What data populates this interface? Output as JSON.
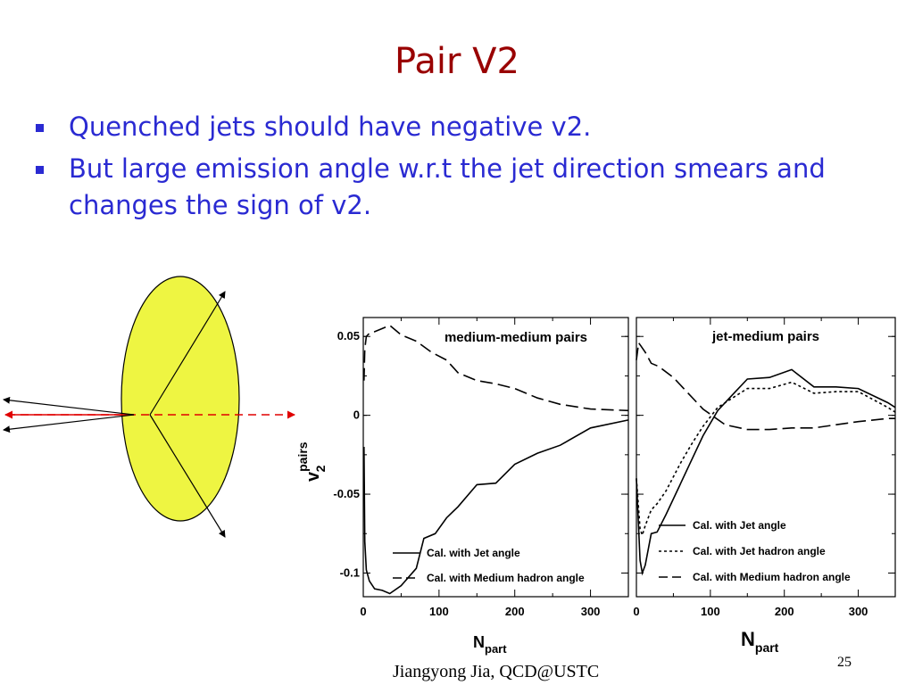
{
  "slide": {
    "title": "Pair V2",
    "bullets": [
      "Quenched jets should have negative v2.",
      "But large emission angle w.r.t the jet direction smears and changes the sign of v2."
    ],
    "footer": "Jiangyong Jia,  QCD@USTC",
    "slide_number": "25"
  },
  "diagram": {
    "ellipse_color": "#eef542",
    "dashed_line_color": "#e00000",
    "arrow_color": "#000000"
  },
  "chart_data": [
    {
      "type": "line",
      "title": "medium-medium pairs",
      "xlabel_main": "N",
      "xlabel_sub": "part",
      "ylabel_main": "v",
      "ylabel_sub": "2",
      "ylabel_sup": "pairs",
      "xlim": [
        0,
        350
      ],
      "ylim": [
        -0.115,
        0.062
      ],
      "xticks": [
        {
          "v": 0,
          "label": "0"
        },
        {
          "v": 100,
          "label": "100"
        },
        {
          "v": 200,
          "label": "200"
        },
        {
          "v": 300,
          "label": "300"
        }
      ],
      "yticks": [
        {
          "v": 0.05,
          "label": "0.05"
        },
        {
          "v": 0,
          "label": "0"
        },
        {
          "v": -0.05,
          "label": "-0.05"
        },
        {
          "v": -0.1,
          "label": "-0.1"
        }
      ],
      "series": [
        {
          "name": "Cal. with Jet angle",
          "style": "solid",
          "x": [
            1,
            2,
            4,
            8,
            15,
            25,
            35,
            50,
            70,
            80,
            95,
            110,
            125,
            150,
            175,
            200,
            230,
            260,
            300,
            350
          ],
          "y": [
            -0.02,
            -0.08,
            -0.098,
            -0.105,
            -0.11,
            -0.111,
            -0.113,
            -0.108,
            -0.097,
            -0.078,
            -0.075,
            -0.065,
            -0.058,
            -0.044,
            -0.043,
            -0.031,
            -0.024,
            -0.019,
            -0.008,
            -0.003
          ]
        },
        {
          "name": "Cal. with Medium hadron angle",
          "style": "dash",
          "x": [
            1,
            2,
            4,
            8,
            15,
            25,
            35,
            50,
            70,
            90,
            110,
            125,
            150,
            175,
            200,
            230,
            260,
            300,
            350
          ],
          "y": [
            0.022,
            0.042,
            0.05,
            0.052,
            0.053,
            0.055,
            0.057,
            0.051,
            0.047,
            0.04,
            0.035,
            0.027,
            0.022,
            0.02,
            0.017,
            0.011,
            0.007,
            0.004,
            0.003
          ]
        }
      ]
    },
    {
      "type": "line",
      "title": "jet-medium pairs",
      "xlabel_main": "N",
      "xlabel_sub": "part",
      "xlim": [
        0,
        350
      ],
      "ylim": [
        -0.115,
        0.062
      ],
      "xticks": [
        {
          "v": 0,
          "label": "0"
        },
        {
          "v": 100,
          "label": "100"
        },
        {
          "v": 200,
          "label": "200"
        },
        {
          "v": 300,
          "label": "300"
        }
      ],
      "series": [
        {
          "name": "Cal. with Jet angle",
          "style": "solid",
          "x": [
            0,
            5,
            8,
            12,
            20,
            28,
            40,
            60,
            75,
            90,
            110,
            130,
            150,
            180,
            210,
            240,
            270,
            300,
            340,
            350
          ],
          "y": [
            -0.04,
            -0.092,
            -0.1,
            -0.095,
            -0.075,
            -0.074,
            -0.063,
            -0.043,
            -0.028,
            -0.013,
            0.003,
            0.013,
            0.023,
            0.024,
            0.029,
            0.018,
            0.018,
            0.017,
            0.008,
            0.005
          ]
        },
        {
          "name": "Cal. with Jet hadron angle",
          "style": "dot",
          "x": [
            0,
            5,
            8,
            12,
            20,
            28,
            40,
            60,
            75,
            90,
            110,
            130,
            150,
            180,
            210,
            240,
            270,
            300,
            340,
            350
          ],
          "y": [
            -0.04,
            -0.072,
            -0.076,
            -0.07,
            -0.06,
            -0.056,
            -0.048,
            -0.03,
            -0.018,
            -0.007,
            0.005,
            0.011,
            0.017,
            0.017,
            0.021,
            0.014,
            0.015,
            0.015,
            0.005,
            0.002
          ]
        },
        {
          "name": "Cal. with Medium hadron angle",
          "style": "dash",
          "x": [
            0,
            3,
            6,
            12,
            20,
            30,
            50,
            70,
            90,
            120,
            150,
            180,
            210,
            240,
            270,
            300,
            340,
            350
          ],
          "y": [
            0.035,
            0.046,
            0.044,
            0.04,
            0.033,
            0.031,
            0.024,
            0.014,
            0.004,
            -0.006,
            -0.009,
            -0.009,
            -0.008,
            -0.008,
            -0.006,
            -0.004,
            -0.002,
            -0.002
          ]
        }
      ]
    }
  ]
}
